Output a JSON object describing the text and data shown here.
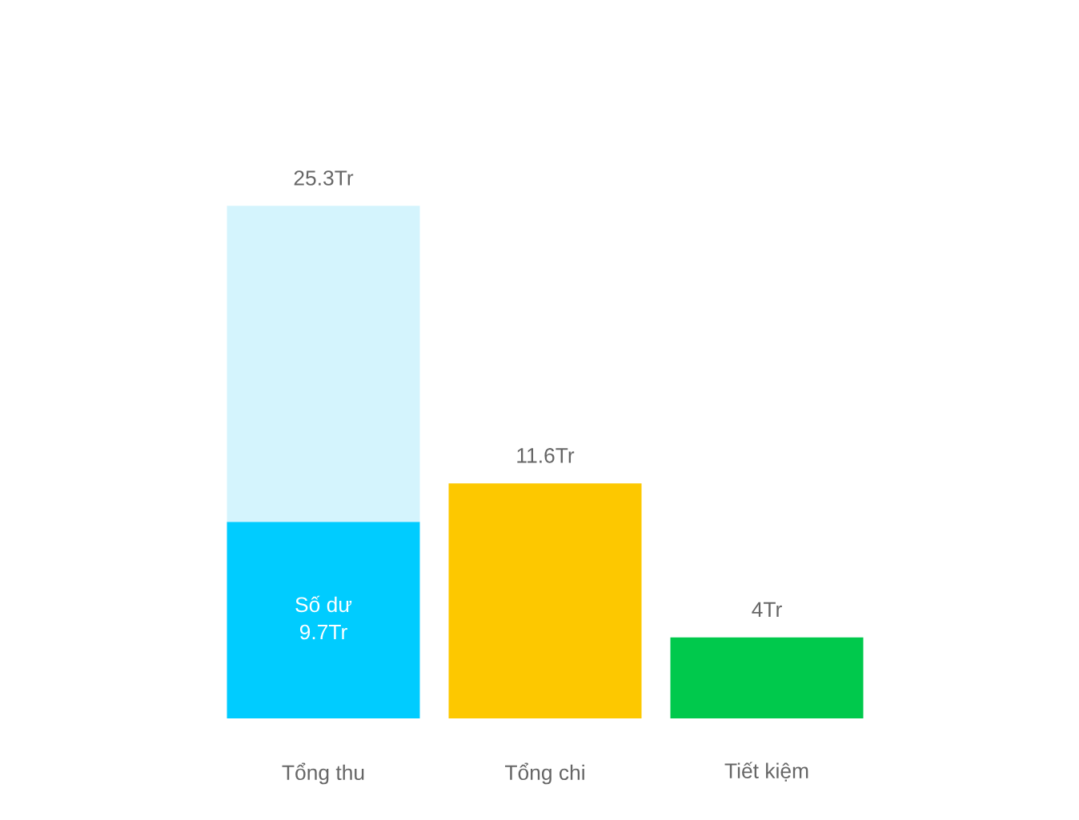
{
  "chart_data": {
    "type": "bar",
    "categories": [
      "Tổng thu",
      "Tổng chi",
      "Tiết kiệm"
    ],
    "stacked": true,
    "tick_labels": "x",
    "grid": false,
    "series": [
      {
        "name": "Số dư",
        "color": "#00ccff",
        "values": [
          9.7,
          null,
          null
        ],
        "value_labels": [
          "9.7Tr",
          null,
          null
        ]
      },
      {
        "colors": [
          "#d4f4fd",
          "#fdc800",
          "#00c94c"
        ],
        "values": [
          15.6,
          11.6,
          4
        ]
      }
    ],
    "totals": [
      "25.3Tr",
      "11.6Tr",
      "4Tr"
    ]
  }
}
